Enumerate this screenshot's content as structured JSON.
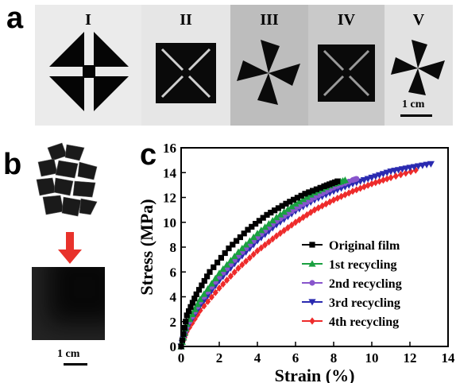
{
  "panels": {
    "a": {
      "letter": "a",
      "stages": [
        "I",
        "II",
        "III",
        "IV",
        "V"
      ],
      "scale_label": "1 cm"
    },
    "b": {
      "letter": "b",
      "scale_label": "1 cm",
      "arrow_color": "#e8322b"
    },
    "c": {
      "letter": "c"
    }
  },
  "chart_data": {
    "type": "line",
    "xlabel": "Strain (%)",
    "ylabel": "Stress (MPa)",
    "xlim": [
      0,
      14
    ],
    "ylim": [
      0,
      16
    ],
    "xticks": [
      0,
      2,
      4,
      6,
      8,
      10,
      12,
      14
    ],
    "yticks": [
      0,
      2,
      4,
      6,
      8,
      10,
      12,
      14,
      16
    ],
    "legend_position": "bottom-right",
    "grid": false,
    "series": [
      {
        "name": "Original film",
        "color": "#000000",
        "marker": "square",
        "x": [
          0,
          0.3,
          0.8,
          1.5,
          2.5,
          3.5,
          4.5,
          5.5,
          6.5,
          7.5,
          8.2
        ],
        "y": [
          0,
          2.5,
          4.2,
          6.0,
          7.9,
          9.4,
          10.6,
          11.5,
          12.3,
          12.9,
          13.3
        ]
      },
      {
        "name": "1st  recycling",
        "color": "#1aa040",
        "marker": "triangle-up",
        "x": [
          0,
          0.3,
          1,
          2,
          3,
          4,
          5,
          6,
          7,
          8,
          8.6
        ],
        "y": [
          0,
          1.8,
          3.8,
          5.9,
          7.6,
          9.1,
          10.4,
          11.5,
          12.4,
          13.1,
          13.4
        ]
      },
      {
        "name": "2nd recycling",
        "color": "#8855cc",
        "marker": "circle",
        "x": [
          0,
          0.3,
          1,
          2,
          3,
          4,
          5,
          6,
          7,
          8,
          9,
          9.2
        ],
        "y": [
          0,
          1.6,
          3.6,
          5.6,
          7.3,
          8.8,
          10.1,
          11.1,
          12.0,
          12.8,
          13.4,
          13.5
        ]
      },
      {
        "name": "3rd recycling",
        "color": "#2a2ab0",
        "marker": "triangle-down",
        "x": [
          0,
          0.3,
          1,
          2,
          3,
          4,
          5,
          6,
          7,
          8,
          9,
          10,
          11,
          12,
          13.1
        ],
        "y": [
          0,
          1.5,
          3.3,
          5.3,
          7.0,
          8.5,
          9.8,
          10.9,
          11.8,
          12.5,
          13.1,
          13.6,
          14.1,
          14.4,
          14.7
        ]
      },
      {
        "name": "4th recycling",
        "color": "#ee2b2b",
        "marker": "diamond",
        "x": [
          0,
          0.3,
          1,
          2,
          3,
          4,
          5,
          6,
          7,
          8,
          9,
          10,
          11,
          12.3
        ],
        "y": [
          0,
          1.2,
          2.9,
          4.7,
          6.3,
          7.7,
          8.9,
          10.0,
          11.0,
          11.8,
          12.5,
          13.1,
          13.6,
          14.2
        ]
      }
    ]
  }
}
